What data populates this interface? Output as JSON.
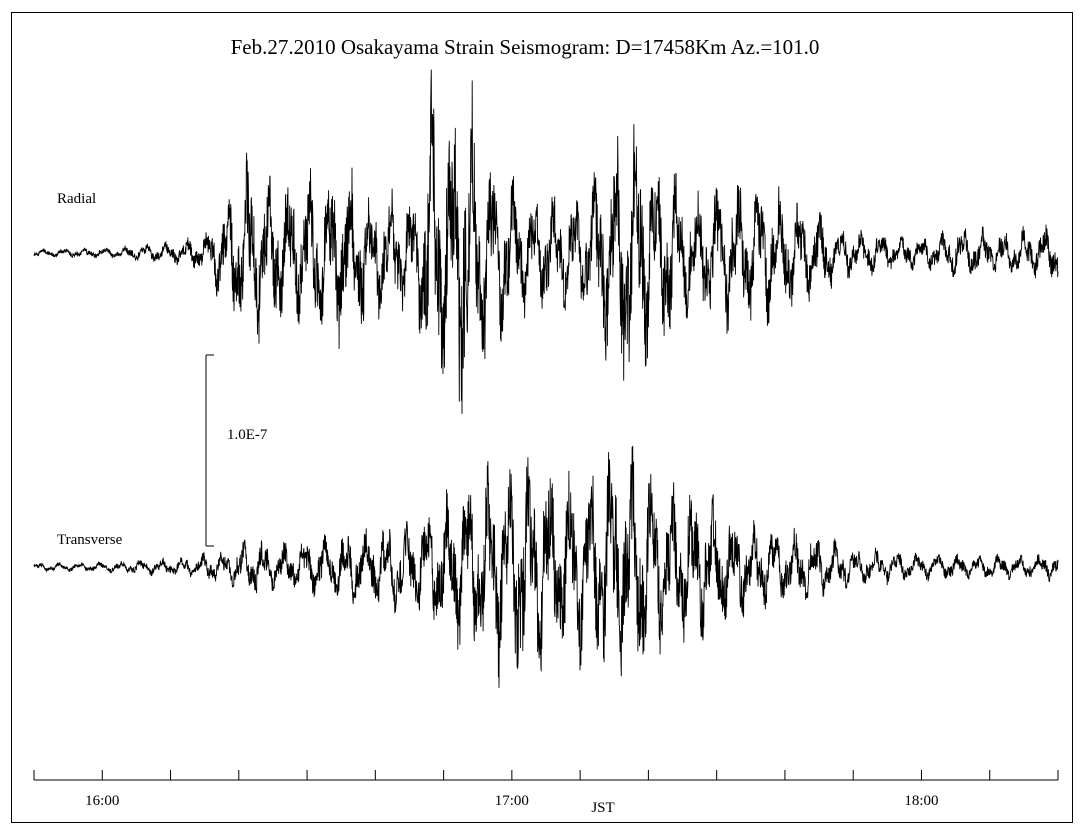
{
  "chart_data": {
    "type": "line",
    "title": "Feb.27.2010  Osakayama   Strain   Seismogram:  D=17458Km  Az.=101.0",
    "xlabel": "JST",
    "ylabel": "",
    "x_unit": "minutes after 16:00 JST",
    "xlim": [
      -10,
      140
    ],
    "x_ticks": [
      {
        "x": 0,
        "label": "16:00"
      },
      {
        "x": 60,
        "label": "17:00"
      },
      {
        "x": 120,
        "label": "18:00"
      }
    ],
    "minor_tick_step": 10,
    "scale_bar": {
      "label": "1.0E-7",
      "value": 1e-07
    },
    "grid": false,
    "series": [
      {
        "name": "Radial",
        "envelope": [
          [
            -10,
            0.03
          ],
          [
            0,
            0.04
          ],
          [
            10,
            0.08
          ],
          [
            15,
            0.15
          ],
          [
            19,
            0.5
          ],
          [
            21,
            0.75
          ],
          [
            26,
            0.55
          ],
          [
            33,
            0.6
          ],
          [
            36,
            0.7
          ],
          [
            40,
            0.5
          ],
          [
            46,
            0.4
          ],
          [
            48,
            1.4
          ],
          [
            51,
            1.0
          ],
          [
            53,
            1.45
          ],
          [
            56,
            0.8
          ],
          [
            62,
            0.45
          ],
          [
            66,
            0.45
          ],
          [
            70,
            0.4
          ],
          [
            73,
            0.7
          ],
          [
            76,
            1.1
          ],
          [
            80,
            0.9
          ],
          [
            86,
            0.45
          ],
          [
            92,
            0.55
          ],
          [
            98,
            0.5
          ],
          [
            104,
            0.35
          ],
          [
            110,
            0.18
          ],
          [
            120,
            0.12
          ],
          [
            126,
            0.2
          ],
          [
            132,
            0.16
          ],
          [
            140,
            0.22
          ]
        ]
      },
      {
        "name": "Transverse",
        "envelope": [
          [
            -10,
            0.03
          ],
          [
            0,
            0.04
          ],
          [
            10,
            0.07
          ],
          [
            18,
            0.13
          ],
          [
            22,
            0.22
          ],
          [
            26,
            0.18
          ],
          [
            30,
            0.2
          ],
          [
            38,
            0.3
          ],
          [
            42,
            0.35
          ],
          [
            46,
            0.35
          ],
          [
            50,
            0.5
          ],
          [
            55,
            0.75
          ],
          [
            58,
            0.8
          ],
          [
            62,
            0.95
          ],
          [
            66,
            0.75
          ],
          [
            70,
            0.7
          ],
          [
            74,
            0.85
          ],
          [
            78,
            0.9
          ],
          [
            82,
            0.65
          ],
          [
            88,
            0.55
          ],
          [
            92,
            0.45
          ],
          [
            98,
            0.3
          ],
          [
            104,
            0.25
          ],
          [
            110,
            0.15
          ],
          [
            120,
            0.1
          ],
          [
            130,
            0.09
          ],
          [
            140,
            0.1
          ]
        ]
      }
    ]
  }
}
